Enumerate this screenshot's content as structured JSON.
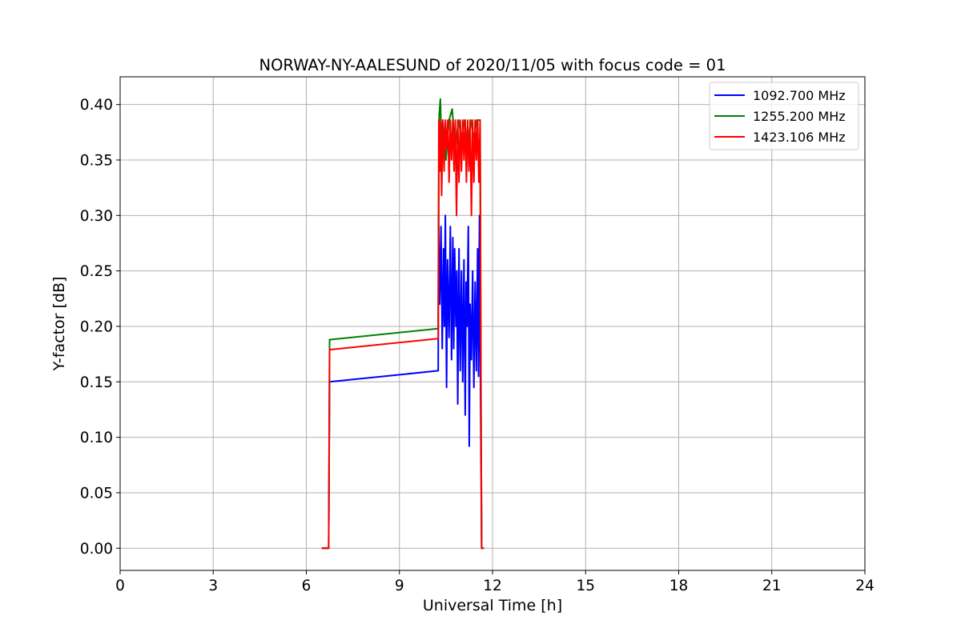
{
  "chart_data": {
    "type": "line",
    "title": "NORWAY-NY-AALESUND of 2020/11/05 with focus code = 01",
    "xlabel": "Universal Time [h]",
    "ylabel": "Y-factor [dB]",
    "xlim": [
      0,
      24
    ],
    "ylim": [
      -0.02,
      0.425
    ],
    "xticks": [
      0,
      3,
      6,
      9,
      12,
      15,
      18,
      21,
      24
    ],
    "xtick_labels": [
      "0",
      "3",
      "6",
      "9",
      "12",
      "15",
      "18",
      "21",
      "24"
    ],
    "yticks": [
      0.0,
      0.05,
      0.1,
      0.15,
      0.2,
      0.25,
      0.3,
      0.35,
      0.4
    ],
    "ytick_labels": [
      "0.00",
      "0.05",
      "0.10",
      "0.15",
      "0.20",
      "0.25",
      "0.30",
      "0.35",
      "0.40"
    ],
    "grid": true,
    "legend_position": "top-right",
    "series": [
      {
        "name": "1092.700 MHz",
        "color": "#0000ff",
        "points": [
          [
            6.5,
            0.0
          ],
          [
            6.72,
            0.0
          ],
          [
            6.75,
            0.15
          ],
          [
            10.25,
            0.16
          ],
          [
            10.26,
            0.3
          ],
          [
            10.3,
            0.22
          ],
          [
            10.34,
            0.29
          ],
          [
            10.38,
            0.18
          ],
          [
            10.42,
            0.27
          ],
          [
            10.45,
            0.2
          ],
          [
            10.48,
            0.3
          ],
          [
            10.52,
            0.145
          ],
          [
            10.55,
            0.26
          ],
          [
            10.6,
            0.19
          ],
          [
            10.64,
            0.29
          ],
          [
            10.68,
            0.17
          ],
          [
            10.72,
            0.28
          ],
          [
            10.75,
            0.18
          ],
          [
            10.78,
            0.27
          ],
          [
            10.82,
            0.2
          ],
          [
            10.85,
            0.25
          ],
          [
            10.88,
            0.13
          ],
          [
            10.92,
            0.27
          ],
          [
            10.96,
            0.16
          ],
          [
            11.0,
            0.25
          ],
          [
            11.04,
            0.15
          ],
          [
            11.08,
            0.26
          ],
          [
            11.12,
            0.12
          ],
          [
            11.15,
            0.24
          ],
          [
            11.18,
            0.2
          ],
          [
            11.22,
            0.29
          ],
          [
            11.25,
            0.092
          ],
          [
            11.28,
            0.22
          ],
          [
            11.32,
            0.17
          ],
          [
            11.36,
            0.25
          ],
          [
            11.4,
            0.145
          ],
          [
            11.44,
            0.24
          ],
          [
            11.48,
            0.16
          ],
          [
            11.52,
            0.27
          ],
          [
            11.55,
            0.155
          ],
          [
            11.58,
            0.3
          ],
          [
            11.62,
            0.115
          ],
          [
            11.65,
            0.0
          ],
          [
            11.72,
            0.0
          ]
        ]
      },
      {
        "name": "1255.200 MHz",
        "color": "#008000",
        "points": [
          [
            6.5,
            0.0
          ],
          [
            6.72,
            0.0
          ],
          [
            6.75,
            0.188
          ],
          [
            10.25,
            0.198
          ],
          [
            10.28,
            0.39
          ],
          [
            10.32,
            0.405
          ],
          [
            10.35,
            0.37
          ],
          [
            10.4,
            0.386
          ],
          [
            10.5,
            0.35
          ],
          [
            10.6,
            0.386
          ],
          [
            10.7,
            0.396
          ],
          [
            10.8,
            0.36
          ],
          [
            10.9,
            0.386
          ],
          [
            11.0,
            0.37
          ],
          [
            11.1,
            0.386
          ],
          [
            11.2,
            0.36
          ],
          [
            11.3,
            0.386
          ],
          [
            11.4,
            0.37
          ],
          [
            11.5,
            0.386
          ],
          [
            11.6,
            0.386
          ],
          [
            11.63,
            0.12
          ],
          [
            11.65,
            0.0
          ],
          [
            11.72,
            0.0
          ]
        ]
      },
      {
        "name": "1423.106 MHz",
        "color": "#ff0000",
        "points": [
          [
            6.5,
            0.0
          ],
          [
            6.72,
            0.0
          ],
          [
            6.75,
            0.179
          ],
          [
            10.25,
            0.189
          ],
          [
            10.27,
            0.386
          ],
          [
            10.3,
            0.34
          ],
          [
            10.33,
            0.386
          ],
          [
            10.36,
            0.318
          ],
          [
            10.4,
            0.386
          ],
          [
            10.44,
            0.34
          ],
          [
            10.48,
            0.386
          ],
          [
            10.52,
            0.36
          ],
          [
            10.56,
            0.386
          ],
          [
            10.6,
            0.33
          ],
          [
            10.64,
            0.386
          ],
          [
            10.68,
            0.35
          ],
          [
            10.72,
            0.386
          ],
          [
            10.76,
            0.34
          ],
          [
            10.8,
            0.386
          ],
          [
            10.84,
            0.3
          ],
          [
            10.88,
            0.386
          ],
          [
            10.92,
            0.33
          ],
          [
            10.96,
            0.386
          ],
          [
            11.0,
            0.34
          ],
          [
            11.04,
            0.386
          ],
          [
            11.08,
            0.35
          ],
          [
            11.12,
            0.386
          ],
          [
            11.16,
            0.33
          ],
          [
            11.2,
            0.386
          ],
          [
            11.24,
            0.34
          ],
          [
            11.28,
            0.386
          ],
          [
            11.32,
            0.3
          ],
          [
            11.36,
            0.386
          ],
          [
            11.4,
            0.33
          ],
          [
            11.44,
            0.386
          ],
          [
            11.48,
            0.35
          ],
          [
            11.52,
            0.386
          ],
          [
            11.56,
            0.33
          ],
          [
            11.6,
            0.386
          ],
          [
            11.63,
            0.12
          ],
          [
            11.65,
            0.0
          ],
          [
            11.72,
            0.0
          ]
        ]
      }
    ]
  }
}
